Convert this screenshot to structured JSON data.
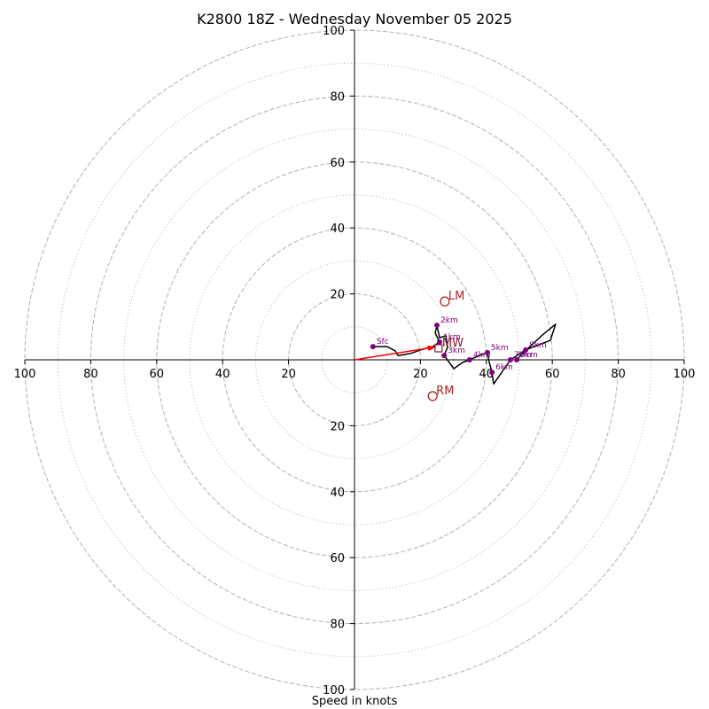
{
  "chart_data": {
    "type": "line",
    "title": "K2800 18Z - Wednesday November 05 2025",
    "xlabel": "Speed in knots",
    "max_speed": 100,
    "grid": true,
    "rings": {
      "major": [
        20,
        40,
        60,
        80,
        100
      ],
      "minor": [
        10,
        30,
        50,
        70,
        90
      ]
    },
    "x_ticks": [
      {
        "value": -100,
        "label": "100"
      },
      {
        "value": -80,
        "label": "80"
      },
      {
        "value": -60,
        "label": "60"
      },
      {
        "value": -40,
        "label": "40"
      },
      {
        "value": -20,
        "label": "20"
      },
      {
        "value": 20,
        "label": "20"
      },
      {
        "value": 40,
        "label": "40"
      },
      {
        "value": 60,
        "label": "60"
      },
      {
        "value": 80,
        "label": "80"
      },
      {
        "value": 100,
        "label": "100"
      }
    ],
    "y_ticks": [
      {
        "value": 100,
        "label": "100"
      },
      {
        "value": 80,
        "label": "80"
      },
      {
        "value": 60,
        "label": "60"
      },
      {
        "value": 40,
        "label": "40"
      },
      {
        "value": 20,
        "label": "20"
      },
      {
        "value": -20,
        "label": "20"
      },
      {
        "value": -40,
        "label": "40"
      },
      {
        "value": -60,
        "label": "60"
      },
      {
        "value": -80,
        "label": "80"
      },
      {
        "value": -100,
        "label": "100"
      }
    ],
    "hodograph": [
      {
        "u": 5.6,
        "v": 4.0
      },
      {
        "u": 9.9,
        "v": 4.0
      },
      {
        "u": 12.4,
        "v": 2.7
      },
      {
        "u": 13.2,
        "v": 1.3
      },
      {
        "u": 16.9,
        "v": 1.9
      },
      {
        "u": 20.7,
        "v": 3.2
      },
      {
        "u": 23.7,
        "v": 4.0
      },
      {
        "u": 25.8,
        "v": 5.4
      },
      {
        "u": 24.5,
        "v": 8.1
      },
      {
        "u": 25.0,
        "v": 10.5
      },
      {
        "u": 25.8,
        "v": 6.7
      },
      {
        "u": 27.7,
        "v": 7.3
      },
      {
        "u": 28.2,
        "v": 3.8
      },
      {
        "u": 27.2,
        "v": 1.3
      },
      {
        "u": 30.1,
        "v": -2.7
      },
      {
        "u": 32.8,
        "v": -0.8
      },
      {
        "u": 34.9,
        "v": 0.0
      },
      {
        "u": 37.9,
        "v": 1.3
      },
      {
        "u": 40.3,
        "v": 2.2
      },
      {
        "u": 40.9,
        "v": -0.8
      },
      {
        "u": 41.7,
        "v": -3.8
      },
      {
        "u": 42.2,
        "v": -7.3
      },
      {
        "u": 47.3,
        "v": 0.0
      },
      {
        "u": 51.9,
        "v": 3.0
      },
      {
        "u": 59.4,
        "v": 5.9
      },
      {
        "u": 61.0,
        "v": 10.8
      },
      {
        "u": 57.0,
        "v": 7.5
      },
      {
        "u": 53.2,
        "v": 4.0
      },
      {
        "u": 49.2,
        "v": 0.0
      }
    ],
    "height_markers": [
      {
        "label": "Sfc",
        "u": 5.6,
        "v": 4.0
      },
      {
        "label": "1km",
        "u": 25.8,
        "v": 5.4
      },
      {
        "label": "2km",
        "u": 25.0,
        "v": 10.5
      },
      {
        "label": "3km",
        "u": 27.2,
        "v": 1.3
      },
      {
        "label": "4km",
        "u": 34.9,
        "v": 0.0
      },
      {
        "label": "5km",
        "u": 40.3,
        "v": 2.2
      },
      {
        "label": "6km",
        "u": 41.7,
        "v": -3.8
      },
      {
        "label": "7km",
        "u": 47.3,
        "v": 0.0
      },
      {
        "label": "8km",
        "u": 51.9,
        "v": 3.0
      },
      {
        "label": "9km",
        "u": 49.2,
        "v": 0.0
      }
    ],
    "storm_motions": [
      {
        "label": "LM",
        "u": 27.4,
        "v": 17.7,
        "marker": "circle",
        "color": "#b22222"
      },
      {
        "label": "RM",
        "u": 23.7,
        "v": -11.0,
        "marker": "circle",
        "color": "#b22222"
      },
      {
        "label": "MW",
        "u": 25.5,
        "v": 3.5,
        "marker": "square",
        "color": "#8b1c2c"
      }
    ],
    "motion_vector": {
      "u": 24.7,
      "v": 3.9
    },
    "colors": {
      "background": "#ffffff",
      "axis": "#000000",
      "text": "#000000",
      "major_ring": "#b0b0b0",
      "minor_ring": "#c4c4c4",
      "trace": "#000000",
      "height_marker": "#800080",
      "motion_vector": "#ff0000"
    }
  }
}
